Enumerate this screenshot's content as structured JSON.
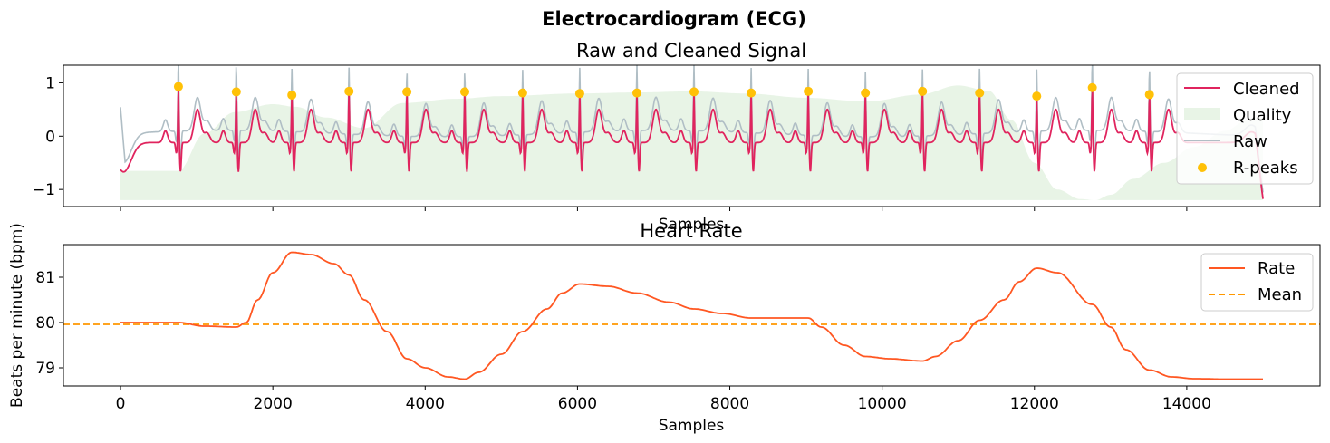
{
  "suptitle": "Electrocardiogram (ECG)",
  "colors": {
    "cleaned": "#E0245E",
    "raw": "#B0BEC5",
    "quality": "#E8F4E6",
    "rpeaks": "#FFC107",
    "rate": "#FF5722",
    "mean": "#FF9800"
  },
  "chart_data": [
    {
      "type": "line",
      "title": "Raw and Cleaned Signal",
      "xlabel": "Samples",
      "ylabel": "",
      "xlim": [
        -750,
        15750
      ],
      "ylim": [
        -1.32,
        1.33
      ],
      "yticks": [
        1,
        0,
        -1
      ],
      "ytick_labels": [
        "1",
        "0",
        "−1"
      ],
      "xticks": [
        0,
        2000,
        4000,
        6000,
        8000,
        10000,
        12000,
        14000
      ],
      "legend": {
        "placement": "top-right",
        "entries": [
          "Cleaned",
          "Quality",
          "Raw",
          "R-peaks"
        ]
      },
      "grid": false,
      "series": [
        {
          "name": "Cleaned",
          "kind": "line",
          "x_range": [
            0,
            15000
          ]
        },
        {
          "name": "Quality",
          "kind": "area",
          "baseline": -1.2,
          "x": [
            0,
            760,
            1100,
            1500,
            2000,
            2300,
            2700,
            3200,
            3700,
            4400,
            5000,
            6000,
            6800,
            7500,
            8200,
            9000,
            9800,
            10500,
            11000,
            11400,
            11700,
            12000,
            12300,
            12600,
            12800,
            13000,
            13300,
            13700,
            14100,
            14500,
            14800,
            15000
          ],
          "y": [
            -0.65,
            -0.65,
            0.05,
            0.45,
            0.6,
            0.55,
            0.35,
            0.15,
            0.62,
            0.7,
            0.75,
            0.8,
            0.82,
            0.84,
            0.8,
            0.72,
            0.65,
            0.78,
            0.95,
            0.85,
            0.3,
            -0.5,
            -1.0,
            -1.18,
            -1.2,
            -1.1,
            -0.8,
            -0.5,
            -0.2,
            0.1,
            0.3,
            0.35
          ]
        },
        {
          "name": "Raw",
          "kind": "line",
          "x_range": [
            0,
            15000
          ]
        },
        {
          "name": "R-peaks",
          "kind": "scatter",
          "x": [
            760,
            1520,
            2250,
            3000,
            3760,
            4520,
            5280,
            6030,
            6780,
            7530,
            8280,
            9030,
            9780,
            10530,
            11280,
            12030,
            12760,
            13510
          ],
          "y": [
            0.93,
            0.83,
            0.77,
            0.84,
            0.83,
            0.83,
            0.81,
            0.8,
            0.81,
            0.83,
            0.81,
            0.84,
            0.81,
            0.84,
            0.81,
            0.75,
            0.91,
            0.78
          ]
        }
      ]
    },
    {
      "type": "line",
      "title": "Heart Rate",
      "xlabel": "Samples",
      "ylabel": "Beats per minute (bpm)",
      "xlim": [
        -750,
        15750
      ],
      "ylim": [
        78.6,
        81.72
      ],
      "yticks": [
        79,
        80,
        81
      ],
      "ytick_labels": [
        "79",
        "80",
        "81"
      ],
      "xticks": [
        0,
        2000,
        4000,
        6000,
        8000,
        10000,
        12000,
        14000
      ],
      "xtick_labels": [
        "0",
        "2000",
        "4000",
        "6000",
        "8000",
        "10000",
        "12000",
        "14000"
      ],
      "legend": {
        "placement": "top-right",
        "entries": [
          "Rate",
          "Mean"
        ]
      },
      "grid": false,
      "series": [
        {
          "name": "Rate",
          "kind": "line",
          "x": [
            0,
            760,
            1100,
            1520,
            1650,
            1800,
            2000,
            2250,
            2500,
            2800,
            3000,
            3200,
            3500,
            3760,
            4000,
            4300,
            4520,
            4700,
            5000,
            5280,
            5600,
            5800,
            6030,
            6400,
            6780,
            7200,
            7530,
            7900,
            8280,
            8600,
            9030,
            9200,
            9500,
            9780,
            10100,
            10530,
            10700,
            11000,
            11280,
            11600,
            11800,
            12030,
            12300,
            12760,
            13000,
            13200,
            13510,
            13800,
            14100,
            14500,
            15000
          ],
          "y": [
            80.0,
            80.0,
            79.92,
            79.9,
            80.0,
            80.5,
            81.1,
            81.55,
            81.5,
            81.3,
            81.05,
            80.5,
            79.8,
            79.2,
            79.0,
            78.8,
            78.75,
            78.9,
            79.3,
            79.8,
            80.3,
            80.65,
            80.85,
            80.8,
            80.65,
            80.45,
            80.3,
            80.2,
            80.1,
            80.1,
            80.1,
            79.9,
            79.5,
            79.25,
            79.2,
            79.15,
            79.25,
            79.6,
            80.05,
            80.5,
            80.9,
            81.2,
            81.1,
            80.4,
            79.9,
            79.4,
            78.95,
            78.8,
            78.76,
            78.75,
            78.75
          ]
        },
        {
          "name": "Mean",
          "kind": "hline",
          "value": 79.96
        }
      ]
    }
  ]
}
